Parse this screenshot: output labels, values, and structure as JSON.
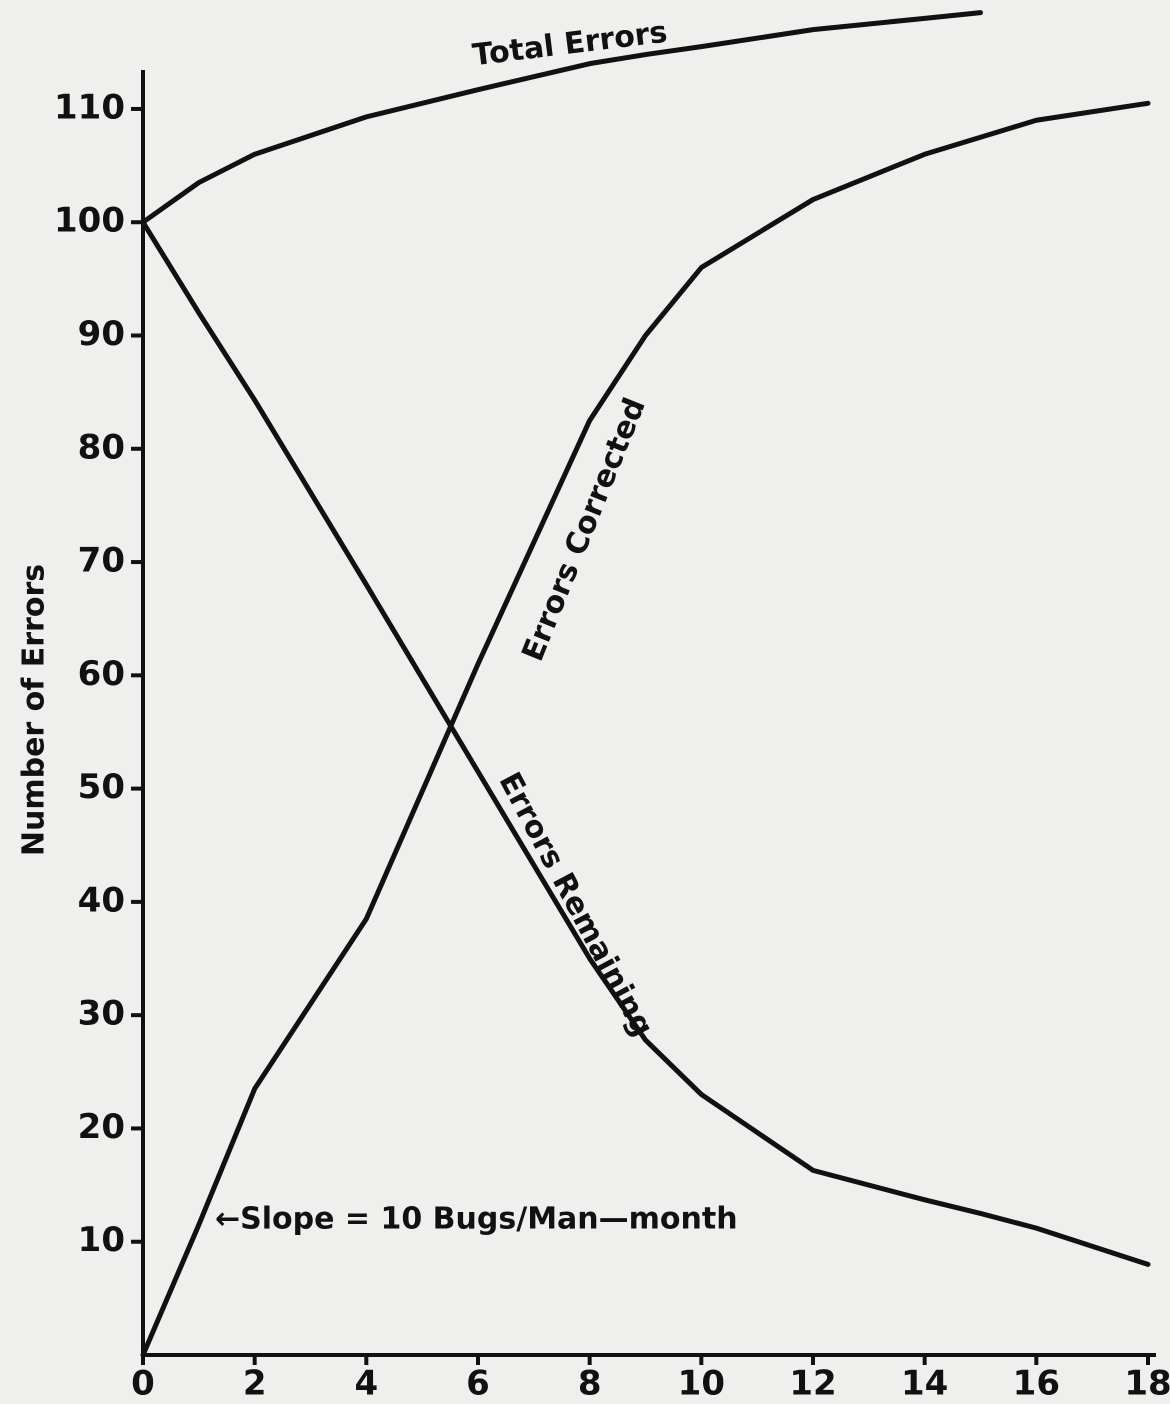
{
  "chart_data": {
    "type": "line",
    "y_label": "Number of Errors",
    "annotation": "←Slope = 10 Bugs/Man—month",
    "x": [
      0,
      1,
      2,
      4,
      6,
      8,
      9,
      10,
      12,
      14,
      15,
      16,
      18
    ],
    "series": [
      {
        "name": "Total Errors",
        "color": "#111111",
        "values": [
          100,
          103.5,
          106,
          109.3,
          111.7,
          114,
          114.8,
          115.5,
          117,
          118,
          118.5,
          null,
          null
        ]
      },
      {
        "name": "Errors Corrected",
        "color": "#111111",
        "values": [
          0,
          11.5,
          23.5,
          38.5,
          61,
          82.5,
          90,
          96,
          102,
          106,
          107.5,
          109,
          110.5
        ]
      },
      {
        "name": "Errors Remaining",
        "color": "#111111",
        "values": [
          100,
          92,
          84.3,
          68,
          51.5,
          35,
          27.8,
          23,
          16.3,
          13.7,
          12.5,
          11.2,
          8
        ]
      }
    ],
    "xlim": [
      0,
      18
    ],
    "xticks": [
      0,
      2,
      4,
      6,
      8,
      10,
      12,
      14,
      16,
      18
    ],
    "ylim": [
      0,
      119
    ],
    "yticks": [
      10,
      20,
      30,
      40,
      50,
      60,
      70,
      80,
      90,
      100,
      110
    ],
    "grid": false
  }
}
